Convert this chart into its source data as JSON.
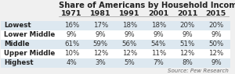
{
  "title": "Share of Americans by Household Income",
  "columns": [
    "1971",
    "1981",
    "1991",
    "2001",
    "2011",
    "2015"
  ],
  "rows": [
    [
      "Lowest",
      "16%",
      "17%",
      "18%",
      "18%",
      "20%",
      "20%"
    ],
    [
      "Lower Middle",
      "9%",
      "9%",
      "9%",
      "9%",
      "9%",
      "9%"
    ],
    [
      "Middle",
      "61%",
      "59%",
      "56%",
      "54%",
      "51%",
      "50%"
    ],
    [
      "Upper Middle",
      "10%",
      "12%",
      "12%",
      "11%",
      "12%",
      "12%"
    ],
    [
      "Highest",
      "4%",
      "3%",
      "5%",
      "7%",
      "8%",
      "9%"
    ]
  ],
  "source": "Source: Pew Research",
  "row_colors": [
    "#dde8f0",
    "#ffffff",
    "#dde8f0",
    "#ffffff",
    "#dde8f0"
  ],
  "title_fontsize": 7.2,
  "cell_fontsize": 6.2,
  "header_fontsize": 6.8,
  "background_color": "#f0f0f0"
}
